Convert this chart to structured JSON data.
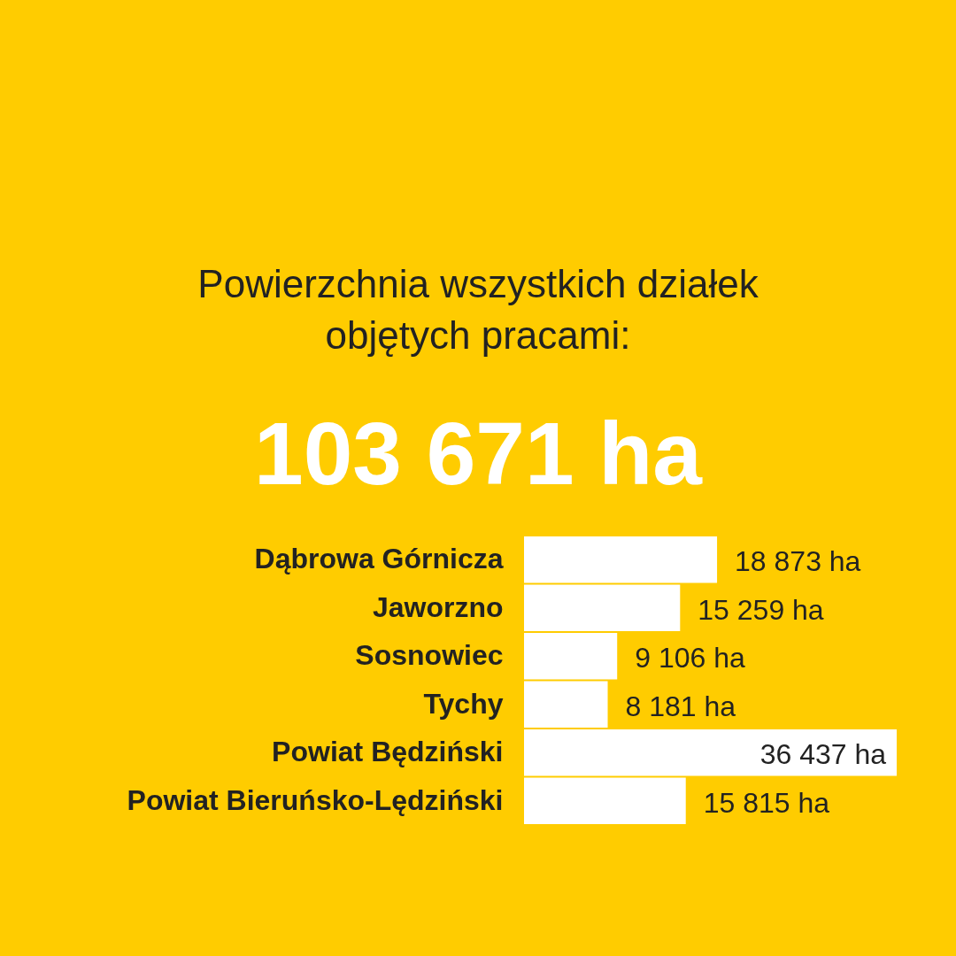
{
  "chart_data": {
    "type": "bar",
    "orientation": "horizontal",
    "title": "Powierzchnia wszystkich działek objętych pracami:",
    "subtitle": "103 671 ha",
    "categories": [
      "Dąbrowa Górnicza",
      "Jaworzno",
      "Sosnowiec",
      "Tychy",
      "Powiat Będziński",
      "Powiat Bieruńsko-Lędziński"
    ],
    "values": [
      18873,
      15259,
      9106,
      8181,
      36437,
      15815
    ],
    "value_labels": [
      "18 873 ha",
      "15 259 ha",
      "9 106 ha",
      "8 181 ha",
      "36 437 ha",
      "15 815 ha"
    ],
    "color": "#ffffff",
    "grid": false
  }
}
